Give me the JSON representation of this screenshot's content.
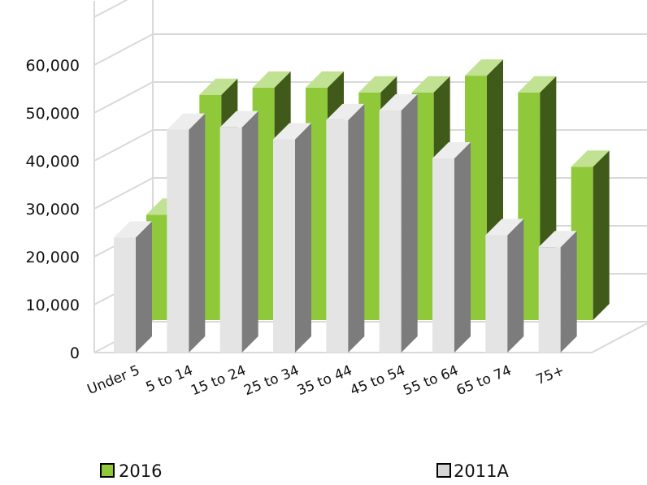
{
  "chart_data": {
    "type": "bar",
    "categories": [
      "Under 5",
      "5 to 14",
      "15 to 24",
      "25 to 34",
      "35 to 44",
      "45 to 54",
      "55 to 64",
      "65 to 74",
      "75+"
    ],
    "series": [
      {
        "name": "2016",
        "values": [
          22000,
          47000,
          48500,
          48500,
          47500,
          47500,
          51000,
          47500,
          32000
        ],
        "color": "#8fc93a"
      },
      {
        "name": "2011A",
        "values": [
          24000,
          46500,
          47000,
          44500,
          48500,
          50500,
          40500,
          24500,
          22000
        ],
        "color": "#d6d6d6"
      }
    ],
    "y_ticks": [
      "0",
      "10,000",
      "20,000",
      "30,000",
      "40,000",
      "50,000",
      "60,000"
    ],
    "ylim": [
      0,
      60000
    ],
    "title": "",
    "xlabel": "",
    "ylabel": "",
    "legend_position": "bottom",
    "grid": true,
    "three_d": true
  }
}
